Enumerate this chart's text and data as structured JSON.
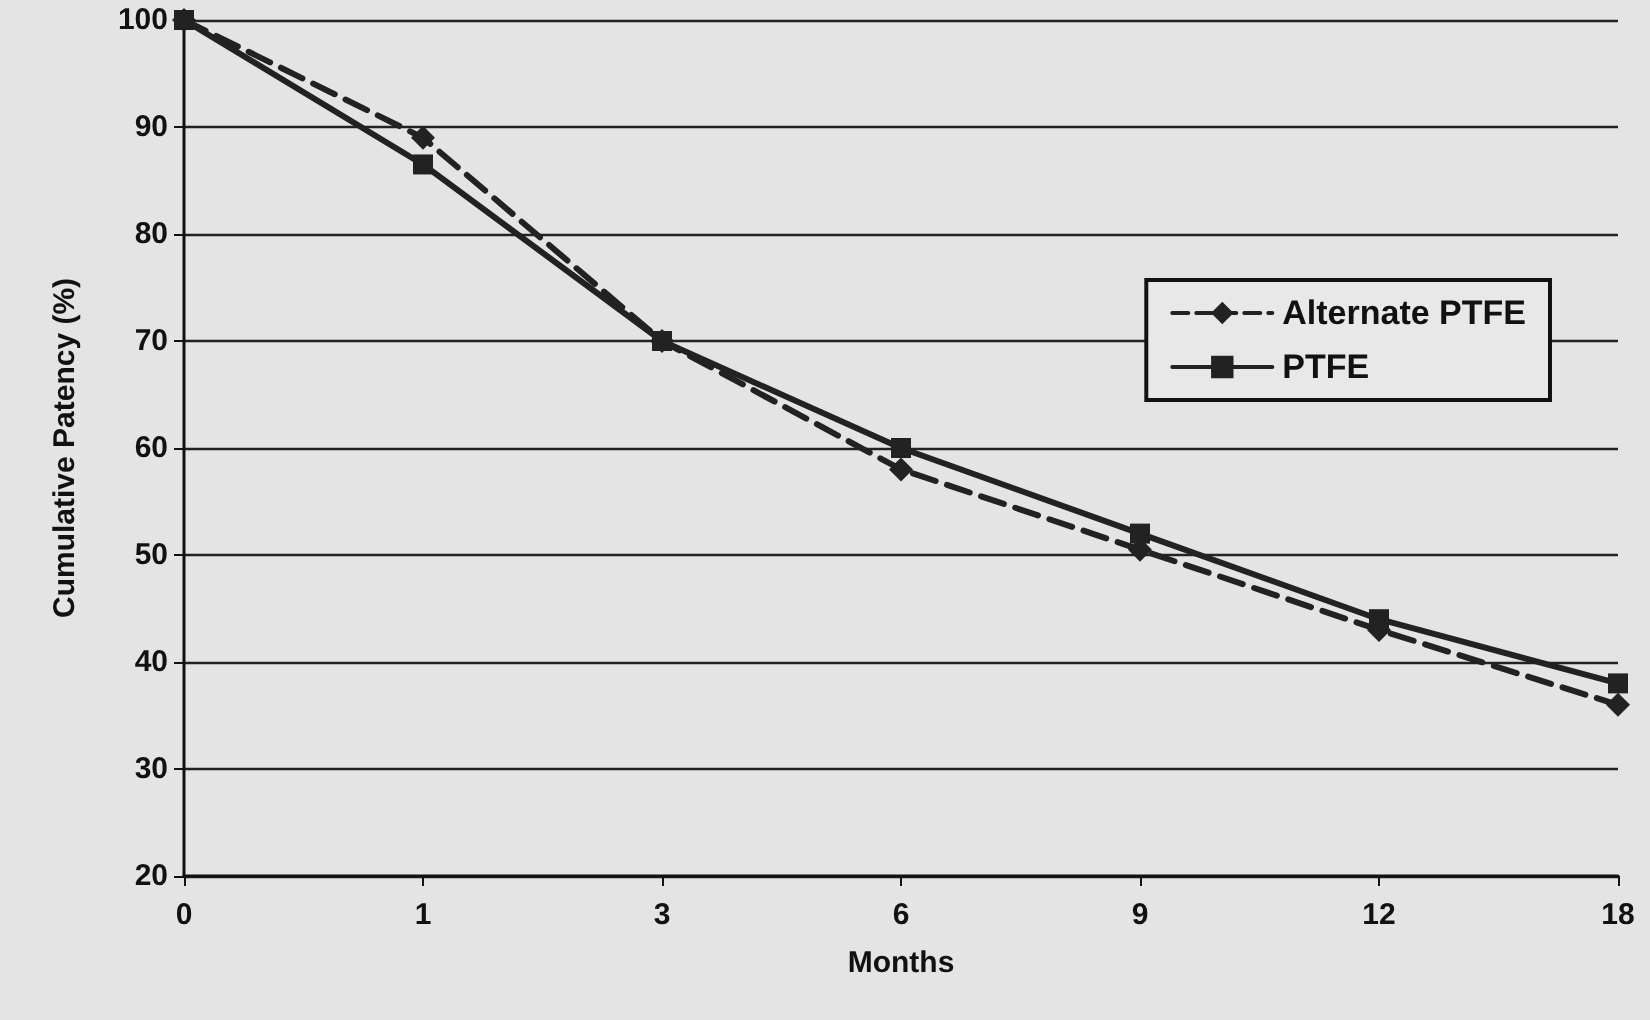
{
  "chart_data": {
    "type": "line",
    "xlabel": "Months",
    "ylabel": "Cumulative Patency (%)",
    "categories": [
      "0",
      "1",
      "3",
      "6",
      "9",
      "12",
      "18"
    ],
    "ylim": [
      20,
      100
    ],
    "yticks": [
      20,
      30,
      40,
      50,
      60,
      70,
      80,
      90,
      100
    ],
    "grid": "y",
    "legend": "top right",
    "series": [
      {
        "name": "Alternate PTFE",
        "color": "#222222",
        "marker": "diamond",
        "line_style": "dashed",
        "values": [
          100,
          89,
          70,
          58,
          50.5,
          43,
          36
        ]
      },
      {
        "name": "PTFE",
        "color": "#222222",
        "marker": "square",
        "line_style": "solid",
        "values": [
          100,
          86.5,
          70,
          60,
          52,
          44,
          38
        ]
      }
    ]
  }
}
